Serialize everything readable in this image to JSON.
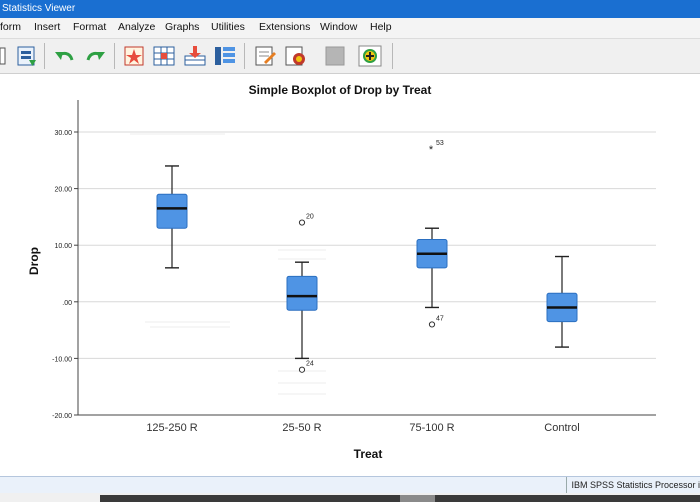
{
  "window": {
    "title": "Statistics Viewer"
  },
  "menu": [
    {
      "label": "form"
    },
    {
      "label": "Insert"
    },
    {
      "label": "Format"
    },
    {
      "label": "Analyze"
    },
    {
      "label": "Graphs"
    },
    {
      "label": "Utilities"
    },
    {
      "label": "Extensions"
    },
    {
      "label": "Window"
    },
    {
      "label": "Help"
    }
  ],
  "toolbar": {
    "icons": [
      "print-preview-icon",
      "export-icon",
      "undo-icon",
      "redo-icon",
      "goto-case-icon",
      "goto-variable-icon",
      "insert-cases-icon",
      "insert-variable-icon",
      "designate-window-icon",
      "script-icon",
      "disabled-icon",
      "add-icon"
    ]
  },
  "status": {
    "text": "IBM SPSS Statistics Processor i"
  },
  "colors": {
    "box_fill": "#4f94e4",
    "box_stroke": "#2b6fc0",
    "titlebar": "#1a6fd1",
    "gridline": "#d8d8d8"
  },
  "chart_data": {
    "type": "boxplot",
    "title": "Simple Boxplot of Drop by Treat",
    "xlabel": "Treat",
    "ylabel": "Drop",
    "ylim": [
      -20,
      35
    ],
    "yticks": [
      {
        "value": 30,
        "label": "30.00"
      },
      {
        "value": 20,
        "label": "20.00"
      },
      {
        "value": 10,
        "label": "10.00"
      },
      {
        "value": 0,
        "label": ".00"
      },
      {
        "value": -10,
        "label": "-10.00"
      },
      {
        "value": -20,
        "label": "-20.00"
      }
    ],
    "grid": true,
    "categories": [
      "125-250 R",
      "25-50 R",
      "75-100 R",
      "Control"
    ],
    "boxes": [
      {
        "category": "125-250 R",
        "whisker_low": 6,
        "q1": 13,
        "median": 16.5,
        "q3": 19,
        "whisker_high": 24,
        "outliers": []
      },
      {
        "category": "25-50 R",
        "whisker_low": -10,
        "q1": -1.5,
        "median": 1,
        "q3": 4.5,
        "whisker_high": 7,
        "outliers": [
          {
            "value": 14,
            "label": "20",
            "marker": "circle"
          },
          {
            "value": -12,
            "label": "24",
            "marker": "circle"
          }
        ]
      },
      {
        "category": "75-100 R",
        "whisker_low": -1,
        "q1": 6,
        "median": 8.5,
        "q3": 11,
        "whisker_high": 13,
        "outliers": [
          {
            "value": 27,
            "label": "53",
            "marker": "star"
          },
          {
            "value": -4,
            "label": "47",
            "marker": "circle"
          }
        ]
      },
      {
        "category": "Control",
        "whisker_low": -8,
        "q1": -3.5,
        "median": -1,
        "q3": 1.5,
        "whisker_high": 8,
        "outliers": []
      }
    ]
  }
}
